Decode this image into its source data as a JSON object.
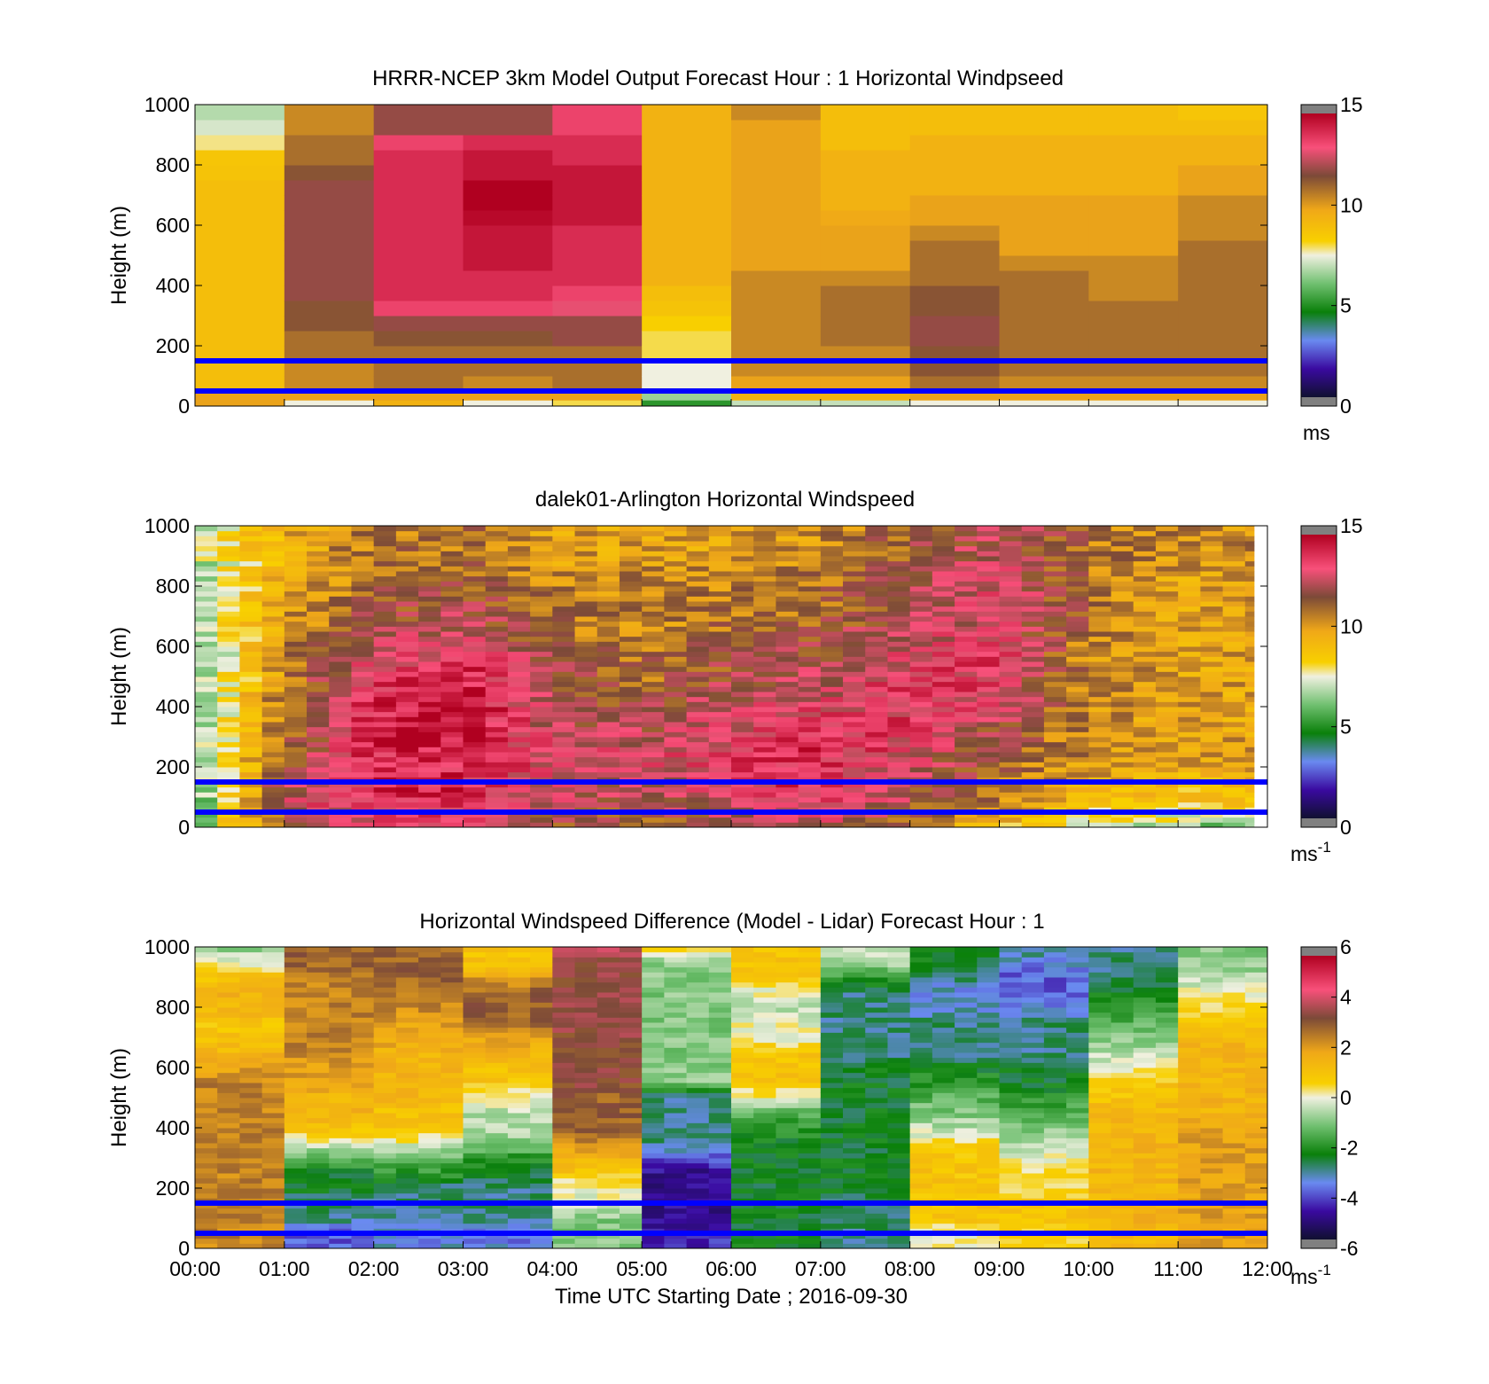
{
  "figure": {
    "xlabel": "Time UTC  Starting Date ; 2016-09-30",
    "x_ticks": [
      "00:00",
      "01:00",
      "02:00",
      "03:00",
      "04:00",
      "05:00",
      "06:00",
      "07:00",
      "08:00",
      "09:00",
      "10:00",
      "11:00",
      "12:00"
    ],
    "blue_lines_height_m": [
      150,
      50
    ],
    "colors": {
      "blue_lines": "#0000ff",
      "missing": "#ffffff"
    }
  },
  "chart_data": [
    {
      "type": "heatmap",
      "title": "HRRR-NCEP 3km Model Output   Forecast Hour : 1 Horizontal Windpseed",
      "ylabel": "Height (m)",
      "ylim": [
        0,
        1000
      ],
      "y_ticks": [
        "0",
        "200",
        "400",
        "600",
        "800",
        "1000"
      ],
      "x_range_hours": [
        0,
        12
      ],
      "colorbar": {
        "range": [
          0,
          15
        ],
        "ticks": [
          "0",
          "5",
          "10",
          "15"
        ],
        "unit": "ms",
        "unit_sup": ""
      },
      "rows_bottom_to_top_m": [
        20,
        50,
        100,
        150,
        200,
        250,
        300,
        350,
        400,
        450,
        500,
        550,
        600,
        650,
        700,
        750,
        800,
        850,
        900,
        950,
        1000
      ],
      "columns": [
        {
          "hour": 0,
          "speeds": [
            10,
            10,
            9,
            9,
            9,
            9,
            9,
            9,
            9,
            9,
            9,
            9,
            9,
            9,
            9,
            9,
            8.8,
            8.7,
            7.8,
            7.2,
            6.8
          ]
        },
        {
          "hour": 1,
          "speeds": [
            7.5,
            10,
            10.5,
            10.5,
            11,
            11,
            11.5,
            11.5,
            12,
            12,
            12,
            12,
            12,
            12,
            12,
            12,
            11.5,
            11,
            11,
            10.5,
            10.5
          ]
        },
        {
          "hour": 2,
          "speeds": [
            9.5,
            10,
            11,
            11,
            11,
            11.5,
            12,
            13.5,
            14,
            14,
            14,
            14,
            14,
            14,
            14,
            14,
            14,
            14,
            13.5,
            12,
            12
          ]
        },
        {
          "hour": 3,
          "speeds": [
            7.5,
            10,
            10.5,
            11,
            11,
            11.5,
            12,
            13.5,
            14,
            14,
            14.5,
            14.5,
            14.5,
            14.8,
            15,
            15,
            14.5,
            14.5,
            14,
            12,
            12
          ]
        },
        {
          "hour": 4,
          "speeds": [
            8,
            10,
            11,
            11,
            11,
            12,
            12,
            13,
            13.5,
            14,
            14,
            14,
            14,
            14.5,
            14.5,
            14.5,
            14.5,
            14,
            14,
            13.5,
            13.5
          ]
        },
        {
          "hour": 5,
          "speeds": [
            5,
            6.5,
            7.5,
            7.5,
            8,
            8,
            8.3,
            8.8,
            9,
            9.5,
            9.5,
            9.5,
            9.5,
            9.5,
            9.5,
            9.5,
            9.5,
            9.5,
            9.5,
            9.5,
            9.5
          ]
        },
        {
          "hour": 6,
          "speeds": [
            7,
            9.5,
            10,
            10.5,
            10.5,
            10.5,
            10.5,
            10.5,
            10.5,
            10.5,
            10,
            10,
            10,
            10,
            10,
            10,
            10,
            10,
            10,
            10,
            10.5
          ]
        },
        {
          "hour": 7,
          "speeds": [
            7,
            9.5,
            10,
            10.5,
            10.5,
            11,
            11,
            11,
            11,
            10.5,
            10,
            10,
            10,
            9.8,
            9.5,
            9.5,
            9.5,
            9.5,
            9,
            9,
            9
          ]
        },
        {
          "hour": 8,
          "speeds": [
            7.5,
            10,
            11,
            11.5,
            11.5,
            12,
            12,
            11.5,
            11.5,
            11,
            11,
            11,
            10.5,
            10,
            10,
            9.5,
            9.5,
            9.5,
            9.5,
            9,
            9
          ]
        },
        {
          "hour": 9,
          "speeds": [
            7.5,
            10,
            10.5,
            11,
            11,
            11,
            11,
            11,
            11,
            11,
            10.5,
            10,
            10,
            10,
            10,
            9.5,
            9.5,
            9.5,
            9.5,
            9,
            9
          ]
        },
        {
          "hour": 10,
          "speeds": [
            7.5,
            10,
            10.5,
            11,
            11,
            11,
            11,
            11,
            10.5,
            10.5,
            10.5,
            10,
            10,
            10,
            10,
            9.5,
            9.5,
            9.5,
            9.5,
            9,
            9
          ]
        },
        {
          "hour": 11,
          "speeds": [
            7.5,
            10,
            10.5,
            11,
            11,
            11,
            11,
            11,
            11,
            11,
            11,
            11,
            10.5,
            10.5,
            10.5,
            10,
            10,
            9.5,
            9.5,
            9,
            8.7
          ]
        }
      ]
    },
    {
      "type": "heatmap",
      "title": "dalek01-Arlington  Horizontal Windspeed",
      "ylabel": "Height (m)",
      "ylim": [
        0,
        1000
      ],
      "y_ticks": [
        "0",
        "200",
        "400",
        "600",
        "800",
        "1000"
      ],
      "x_range_hours": [
        0,
        11.85
      ],
      "colorbar": {
        "range": [
          0,
          15
        ],
        "ticks": [
          "0",
          "5",
          "10",
          "15"
        ],
        "unit": "ms",
        "unit_sup": "-1"
      },
      "profile_hours": [
        0,
        1,
        2,
        3,
        4,
        5,
        6,
        7,
        8,
        9,
        10,
        11,
        11.85
      ],
      "profiles_bottom_to_top": [
        {
          "hour": 0,
          "speeds": [
            6,
            5.5,
            6,
            6,
            6,
            6,
            6,
            6,
            6.5,
            6.5,
            6.5,
            7,
            7
          ]
        },
        {
          "hour": 1,
          "speeds": [
            12,
            12.5,
            12,
            11.5,
            11,
            11,
            10.5,
            10.5,
            10,
            10,
            9.5,
            9.5,
            9.5
          ]
        },
        {
          "hour": 2,
          "speeds": [
            13,
            14,
            14,
            14,
            14,
            14,
            13.5,
            13,
            12,
            11.5,
            11,
            11,
            11
          ]
        },
        {
          "hour": 3,
          "speeds": [
            13,
            14,
            14,
            14,
            15,
            15,
            14.5,
            13.5,
            12.5,
            12,
            11.5,
            11,
            11
          ]
        },
        {
          "hour": 4,
          "speeds": [
            11.5,
            12.5,
            13,
            13,
            12.5,
            12,
            12,
            11.5,
            11,
            11,
            10.5,
            10,
            10
          ]
        },
        {
          "hour": 5,
          "speeds": [
            11,
            12,
            12.5,
            13,
            12,
            11.5,
            11,
            11,
            10.5,
            10.5,
            10.5,
            10,
            10
          ]
        },
        {
          "hour": 6,
          "speeds": [
            12,
            13,
            13.5,
            13.5,
            13,
            12.5,
            12,
            11.5,
            11,
            11,
            10.5,
            10,
            10
          ]
        },
        {
          "hour": 7,
          "speeds": [
            12.5,
            13.5,
            14,
            14,
            13.5,
            13,
            12.5,
            12,
            11.5,
            11,
            11,
            10.5,
            10.5
          ]
        },
        {
          "hour": 8,
          "speeds": [
            11,
            12,
            12.5,
            13,
            13.5,
            13.5,
            13.5,
            13,
            12.5,
            12,
            12,
            11.5,
            11.5
          ]
        },
        {
          "hour": 9,
          "speeds": [
            9,
            10.5,
            11,
            11.5,
            12,
            13,
            13.5,
            13.5,
            13,
            13,
            13,
            12.5,
            12.5
          ]
        },
        {
          "hour": 10,
          "speeds": [
            7.5,
            9,
            10,
            10.5,
            10.5,
            10.5,
            10.5,
            10.5,
            11,
            11,
            11,
            11,
            11
          ]
        },
        {
          "hour": 11,
          "speeds": [
            6.5,
            8.5,
            9.5,
            10,
            10,
            10,
            10,
            10,
            10,
            10,
            10,
            10.5,
            10.5
          ]
        },
        {
          "hour": 11.85,
          "speeds": [
            6,
            8.5,
            9.5,
            10,
            10,
            10,
            10,
            10,
            10,
            10,
            10,
            10.5,
            10.5
          ]
        }
      ]
    },
    {
      "type": "heatmap",
      "title": "Horizontal Windspeed Difference (Model - Lidar) Forecast Hour : 1",
      "ylabel": "Height (m)",
      "ylim": [
        0,
        1000
      ],
      "y_ticks": [
        "0",
        "200",
        "400",
        "600",
        "800",
        "1000"
      ],
      "x_range_hours": [
        0,
        12
      ],
      "colorbar": {
        "range": [
          -6,
          6
        ],
        "ticks": [
          "-6",
          "-4",
          "-2",
          "0",
          "2",
          "4",
          "6"
        ],
        "unit": "ms",
        "unit_sup": "-1"
      },
      "profiles_bottom_to_top": [
        {
          "hour": 0,
          "diffs": [
            2.5,
            2.5,
            2.5,
            2.5,
            2.5,
            2.5,
            2.5,
            2.5,
            2.5,
            2.5,
            2.5,
            2.5,
            2,
            1.5,
            1,
            1,
            1.5,
            1.5,
            1,
            0,
            -1
          ]
        },
        {
          "hour": 1,
          "diffs": [
            -4,
            -4,
            -3,
            -3,
            -2.5,
            -2.5,
            -1.5,
            0,
            1,
            1.5,
            1.5,
            2,
            2,
            2.5,
            2.5,
            2.5,
            2.5,
            2.5,
            2.5,
            3,
            3
          ]
        },
        {
          "hour": 2,
          "diffs": [
            -3.5,
            -3.5,
            -3,
            -3,
            -3,
            -2,
            -1.5,
            0,
            1,
            1,
            1.5,
            1.5,
            1.5,
            1.5,
            2,
            2,
            2.5,
            2.5,
            3,
            3,
            3
          ]
        },
        {
          "hour": 3,
          "diffs": [
            -3.5,
            -4,
            -3,
            -3,
            -3,
            -2.5,
            -2,
            -1,
            -0.5,
            -0.5,
            0,
            1,
            1,
            1.5,
            2,
            3,
            3,
            3,
            2,
            1,
            1
          ]
        },
        {
          "hour": 4,
          "diffs": [
            -1,
            -1,
            -1,
            0,
            0,
            1,
            1.5,
            2.5,
            3,
            3,
            3,
            3.5,
            3.5,
            3.5,
            3.5,
            3.5,
            3.5,
            3.5,
            3.5,
            3.5,
            4
          ]
        },
        {
          "hour": 5,
          "diffs": [
            -4.5,
            -4.5,
            -5,
            -5,
            -5,
            -5,
            -4,
            -3,
            -3,
            -3,
            -3,
            -1,
            -1,
            -1,
            -1,
            -1,
            -1,
            -1,
            -1,
            -1,
            1
          ]
        },
        {
          "hour": 6,
          "diffs": [
            -2.5,
            -2.5,
            -2.5,
            -2.5,
            -2.5,
            -2.5,
            -2.5,
            -2.5,
            -2,
            -1.5,
            0,
            1,
            1,
            1,
            0,
            0,
            -0.5,
            0,
            1,
            1,
            1
          ]
        },
        {
          "hour": 7,
          "diffs": [
            -3,
            -3,
            -3,
            -3,
            -2.5,
            -2.5,
            -2.5,
            -2.5,
            -2.5,
            -2.5,
            -2.5,
            -2.5,
            -2.5,
            -3,
            -3,
            -3,
            -3,
            -3,
            -2,
            -0.5,
            -0.5
          ]
        },
        {
          "hour": 8,
          "diffs": [
            0,
            0,
            1,
            1,
            1,
            1,
            1,
            0.5,
            -0.5,
            -1,
            -1.5,
            -2,
            -2.5,
            -3,
            -3,
            -3,
            -3.5,
            -3.5,
            -3,
            -2.5,
            -2.5
          ]
        },
        {
          "hour": 9,
          "diffs": [
            0.5,
            0.5,
            1,
            1,
            0.5,
            0.5,
            0,
            -0.5,
            -1,
            -1.5,
            -2,
            -2.5,
            -2.5,
            -3,
            -3,
            -3,
            -3.5,
            -4,
            -4,
            -3.5,
            -3
          ]
        },
        {
          "hour": 10,
          "diffs": [
            1.5,
            1.5,
            1.5,
            1.5,
            1.5,
            1.5,
            1.5,
            1.5,
            1.5,
            1.5,
            1,
            1,
            0,
            -0.5,
            -1,
            -1.5,
            -2,
            -2.5,
            -3,
            -3,
            -3
          ]
        },
        {
          "hour": 11,
          "diffs": [
            2,
            2,
            2,
            2,
            2,
            2,
            2,
            2,
            2,
            1.5,
            1.5,
            1.5,
            1.5,
            1.5,
            1.5,
            1,
            0.5,
            0,
            -0.5,
            -1,
            -1
          ]
        }
      ]
    }
  ]
}
